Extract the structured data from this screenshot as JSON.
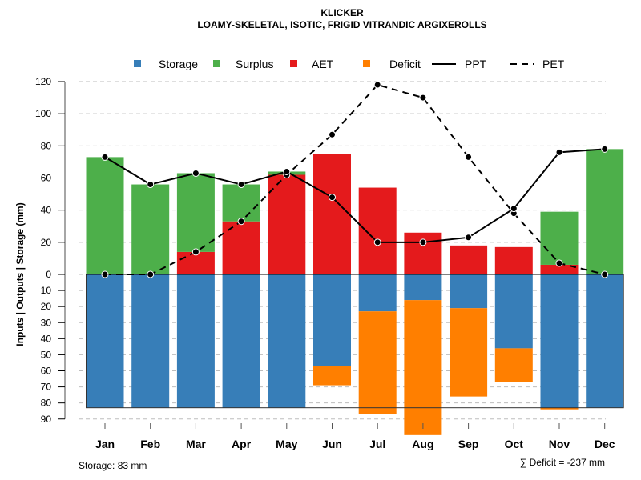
{
  "chart_data": {
    "type": "bar",
    "title": "KLICKER",
    "subtitle": "LOAMY-SKELETAL, ISOTIC, FRIGID VITRANDIC ARGIXEROLLS",
    "ylabel": "Inputs | Outputs | Storage    (mm)",
    "xlabel": "",
    "categories": [
      "Jan",
      "Feb",
      "Mar",
      "Apr",
      "May",
      "Jun",
      "Jul",
      "Aug",
      "Sep",
      "Oct",
      "Nov",
      "Dec"
    ],
    "ylim_top": [
      0,
      120
    ],
    "ylim_bottom": [
      0,
      90
    ],
    "yticks_top": [
      0,
      20,
      40,
      60,
      80,
      100,
      120
    ],
    "yticks_bottom": [
      10,
      20,
      30,
      40,
      50,
      60,
      70,
      80,
      90
    ],
    "grid": true,
    "legend_position": "top",
    "storage_capacity": 83,
    "colors": {
      "storage": "#377eb8",
      "surplus": "#4daf4a",
      "aet": "#e41a1c",
      "deficit": "#ff7f00",
      "line": "#000000",
      "grid": "#bdbdbd"
    },
    "legend": [
      {
        "key": "storage",
        "label": "Storage",
        "kind": "square"
      },
      {
        "key": "surplus",
        "label": "Surplus",
        "kind": "square"
      },
      {
        "key": "aet",
        "label": "AET",
        "kind": "square"
      },
      {
        "key": "deficit",
        "label": "Deficit",
        "kind": "square"
      },
      {
        "key": "ppt",
        "label": "PPT",
        "kind": "solid-line"
      },
      {
        "key": "pet",
        "label": "PET",
        "kind": "dashed-line"
      }
    ],
    "series": [
      {
        "name": "AET",
        "values": [
          0,
          0,
          14,
          33,
          62,
          75,
          54,
          26,
          18,
          17,
          6,
          0
        ]
      },
      {
        "name": "Surplus",
        "values": [
          73,
          56,
          49,
          23,
          2,
          0,
          0,
          0,
          0,
          0,
          33,
          78
        ]
      },
      {
        "name": "Storage",
        "values": [
          83,
          83,
          83,
          83,
          83,
          57,
          23,
          16,
          21,
          46,
          83,
          83
        ]
      },
      {
        "name": "Deficit",
        "values": [
          0,
          0,
          0,
          0,
          0,
          12,
          64,
          84,
          55,
          21,
          1,
          0
        ]
      },
      {
        "name": "PPT",
        "values": [
          73,
          56,
          63,
          56,
          64,
          48,
          20,
          20,
          23,
          41,
          76,
          78
        ]
      },
      {
        "name": "PET",
        "values": [
          0,
          0,
          14,
          33,
          62,
          87,
          118,
          110,
          73,
          38,
          7,
          0
        ]
      }
    ]
  },
  "annotations": {
    "storage_note": "Storage: 83 mm",
    "deficit_note": "∑ Deficit = -237 mm"
  }
}
